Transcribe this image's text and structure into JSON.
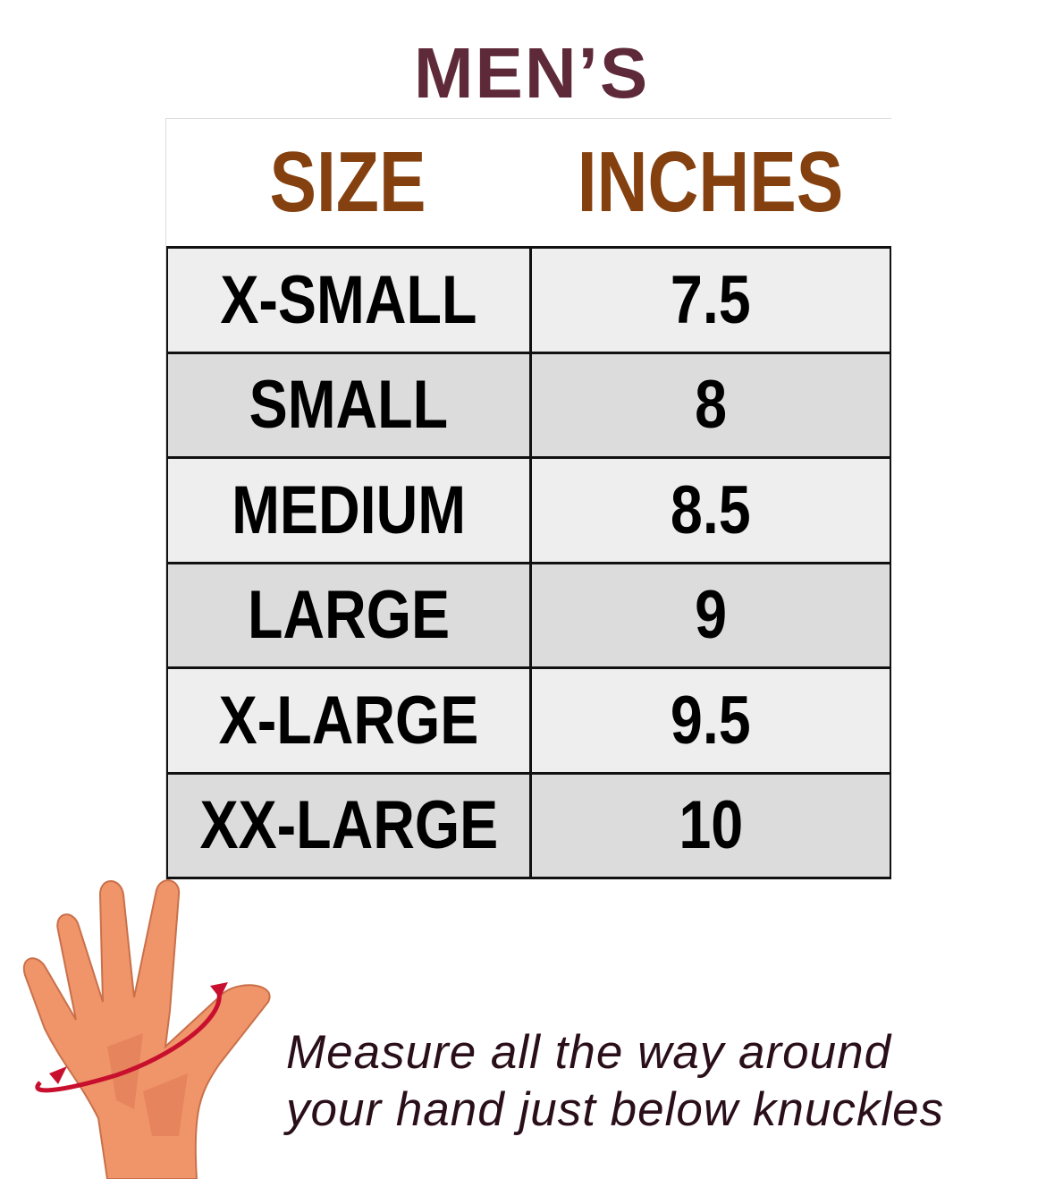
{
  "title": "MEN’S",
  "table": {
    "headers": [
      "SIZE",
      "INCHES"
    ],
    "rows": [
      {
        "size": "X-SMALL",
        "inches": "7.5"
      },
      {
        "size": "SMALL",
        "inches": "8"
      },
      {
        "size": "MEDIUM",
        "inches": "8.5"
      },
      {
        "size": "LARGE",
        "inches": "9"
      },
      {
        "size": "X-LARGE",
        "inches": "9.5"
      },
      {
        "size": "XX-LARGE",
        "inches": "10"
      }
    ]
  },
  "illustration": {
    "icon": "hand-measure-icon",
    "skin_color": "#f0956a",
    "arrow_color": "#c8102e"
  },
  "note": {
    "line1": "Measure all the way around",
    "line2": "your hand just below knuckles"
  },
  "colors": {
    "title": "#5e2a3a",
    "header": "#85400f",
    "row_light": "#eeeeee",
    "row_dark": "#dcdcdc"
  }
}
